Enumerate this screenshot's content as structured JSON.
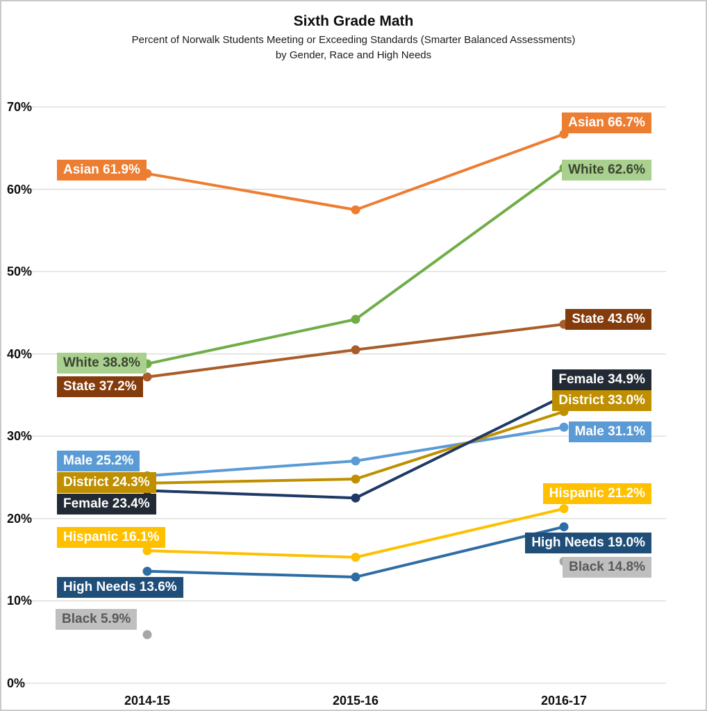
{
  "header": {
    "title": "Sixth Grade Math",
    "subtitle_line1": "Percent of Norwalk Students Meeting or Exceeding Standards (Smarter Balanced Assessments)",
    "subtitle_line2": "by Gender, Race and High Needs"
  },
  "chart_data": {
    "type": "line",
    "categories": [
      "2014-15",
      "2015-16",
      "2016-17"
    ],
    "y_ticks": [
      "0%",
      "10%",
      "20%",
      "30%",
      "40%",
      "50%",
      "60%",
      "70%"
    ],
    "ylim": [
      0,
      70
    ],
    "grid": "horizontal",
    "legend_position": "inline-data-labels",
    "series": [
      {
        "name": "Asian",
        "values": [
          61.9,
          57.5,
          66.7
        ],
        "color": "#ED7D31",
        "label_bg": "#ED7D31",
        "label_color": "#FFFFFF",
        "start_label": "Asian 61.9%",
        "end_label": "Asian 66.7%"
      },
      {
        "name": "White",
        "values": [
          38.8,
          44.2,
          62.6
        ],
        "color": "#70AD47",
        "label_bg": "#A9D08E",
        "label_color": "#3A4531",
        "start_label": "White 38.8%",
        "end_label": "White 62.6%"
      },
      {
        "name": "State",
        "values": [
          37.2,
          40.5,
          43.6
        ],
        "color": "#A85D2A",
        "label_bg": "#843C0C",
        "label_color": "#FFFFFF",
        "start_label": "State 37.2%",
        "end_label": "State 43.6%"
      },
      {
        "name": "Female",
        "values": [
          23.4,
          22.5,
          34.9
        ],
        "color": "#1F3864",
        "label_bg": "#222A35",
        "label_color": "#FFFFFF",
        "start_label": "Female 23.4%",
        "end_label": "Female 34.9%"
      },
      {
        "name": "District",
        "values": [
          24.3,
          24.8,
          33.0
        ],
        "color": "#BF8F00",
        "label_bg": "#BF8F00",
        "label_color": "#FFFFFF",
        "start_label": "District 24.3%",
        "end_label": "District 33.0%"
      },
      {
        "name": "Male",
        "values": [
          25.2,
          27.0,
          31.1
        ],
        "color": "#5B9BD5",
        "label_bg": "#5B9BD5",
        "label_color": "#FFFFFF",
        "start_label": "Male 25.2%",
        "end_label": "Male 31.1%"
      },
      {
        "name": "Hispanic",
        "values": [
          16.1,
          15.3,
          21.2
        ],
        "color": "#FFC000",
        "label_bg": "#FFC000",
        "label_color": "#FFFFFF",
        "start_label": "Hispanic 16.1%",
        "end_label": "Hispanic 21.2%"
      },
      {
        "name": "High Needs",
        "values": [
          13.6,
          12.9,
          19.0
        ],
        "color": "#2E6DA4",
        "label_bg": "#1F4E79",
        "label_color": "#FFFFFF",
        "start_label": "High Needs 13.6%",
        "end_label": "High Needs 19.0%"
      },
      {
        "name": "Black",
        "values": [
          5.9,
          null,
          14.8
        ],
        "color": "#A6A6A6",
        "label_bg": "#BFBFBF",
        "label_color": "#595959",
        "start_label": "Black 5.9%",
        "end_label": "Black 14.8%",
        "line": false
      }
    ]
  }
}
